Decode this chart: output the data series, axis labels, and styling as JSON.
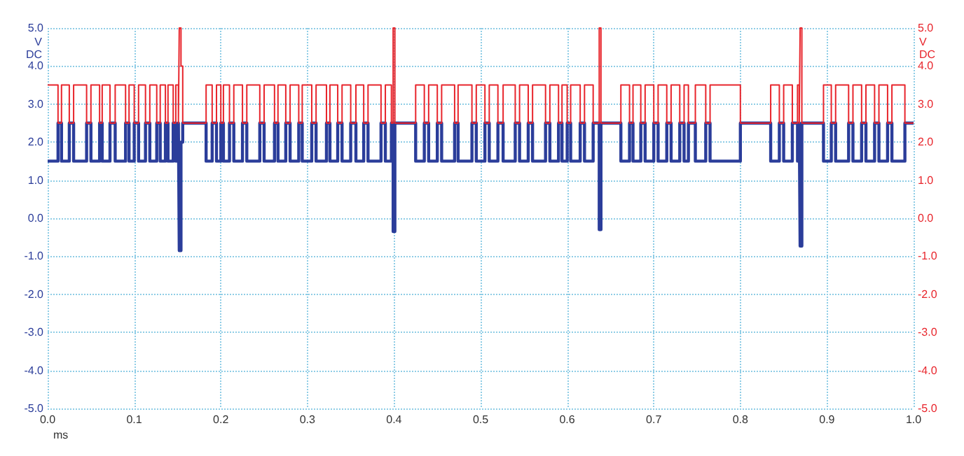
{
  "chart_data": {
    "type": "step",
    "xlabel": "ms",
    "ylabel": "V DC",
    "y2label": "V DC",
    "x": [
      0,
      0.012,
      0.016,
      0.025,
      0.03,
      0.045,
      0.05,
      0.06,
      0.063,
      0.072,
      0.078,
      0.09,
      0.094,
      0.1,
      0.105,
      0.113,
      0.118,
      0.126,
      0.13,
      0.136,
      0.139,
      0.145,
      0.148,
      0.151,
      0.152,
      0.154,
      0.156,
      0.183,
      0.19,
      0.195,
      0.2,
      0.203,
      0.21,
      0.215,
      0.225,
      0.23,
      0.245,
      0.25,
      0.262,
      0.266,
      0.275,
      0.28,
      0.29,
      0.294,
      0.305,
      0.31,
      0.322,
      0.326,
      0.335,
      0.34,
      0.35,
      0.356,
      0.365,
      0.37,
      0.385,
      0.39,
      0.397,
      0.399,
      0.401,
      0.425,
      0.435,
      0.44,
      0.45,
      0.455,
      0.47,
      0.474,
      0.49,
      0.495,
      0.505,
      0.51,
      0.52,
      0.526,
      0.54,
      0.545,
      0.555,
      0.56,
      0.575,
      0.58,
      0.59,
      0.594,
      0.6,
      0.604,
      0.615,
      0.62,
      0.63,
      0.637,
      0.639,
      0.662,
      0.672,
      0.676,
      0.685,
      0.69,
      0.7,
      0.705,
      0.715,
      0.72,
      0.73,
      0.735,
      0.74,
      0.748,
      0.76,
      0.765,
      0.8,
      0.835,
      0.845,
      0.85,
      0.86,
      0.866,
      0.868,
      0.869,
      0.871,
      0.896,
      0.905,
      0.91,
      0.925,
      0.93,
      0.94,
      0.945,
      0.955,
      0.96,
      0.97,
      0.975,
      0.99,
      1.0
    ],
    "series": [
      {
        "color": "#2b3d9a",
        "values": [
          1.5,
          2.5,
          1.5,
          2.5,
          1.5,
          2.5,
          1.5,
          2.5,
          1.5,
          2.5,
          1.5,
          2.5,
          1.5,
          2.5,
          1.5,
          2.5,
          1.5,
          2.5,
          1.5,
          2.5,
          1.5,
          2.5,
          1.5,
          2.5,
          -0.85,
          2.0,
          2.5,
          1.5,
          2.5,
          1.5,
          2.5,
          1.5,
          2.5,
          1.5,
          2.5,
          1.5,
          2.5,
          1.5,
          2.5,
          1.5,
          2.5,
          1.5,
          2.5,
          1.5,
          2.5,
          1.5,
          2.5,
          1.5,
          2.5,
          1.5,
          2.5,
          1.5,
          2.5,
          1.5,
          2.5,
          1.5,
          2.5,
          -0.35,
          2.5,
          1.5,
          2.5,
          1.5,
          2.5,
          1.5,
          2.5,
          1.5,
          2.5,
          1.5,
          2.5,
          1.5,
          2.5,
          1.5,
          2.5,
          1.5,
          2.5,
          1.5,
          2.5,
          1.5,
          2.5,
          1.5,
          2.5,
          1.5,
          2.5,
          1.5,
          2.5,
          -0.3,
          2.5,
          1.5,
          2.5,
          1.5,
          2.5,
          1.5,
          2.5,
          1.5,
          2.5,
          1.5,
          2.5,
          1.5,
          2.5,
          1.5,
          2.5,
          1.5,
          2.5,
          1.5,
          2.5,
          1.5,
          2.5,
          1.5,
          2.5,
          -0.73,
          2.5,
          1.5,
          2.5,
          1.5,
          2.5,
          1.5,
          2.5,
          1.5,
          2.5,
          1.5,
          2.5,
          1.5,
          2.5,
          2.5
        ]
      },
      {
        "color": "#e8252c",
        "axis": "y2",
        "values": [
          3.5,
          2.5,
          3.5,
          2.5,
          3.5,
          2.5,
          3.5,
          2.5,
          3.5,
          2.5,
          3.5,
          2.5,
          3.5,
          2.5,
          3.5,
          2.5,
          3.5,
          2.5,
          3.5,
          2.5,
          3.5,
          2.5,
          3.5,
          2.5,
          5.0,
          4.0,
          2.5,
          3.5,
          2.5,
          3.5,
          2.5,
          3.5,
          2.5,
          3.5,
          2.5,
          3.5,
          2.5,
          3.5,
          2.5,
          3.5,
          2.5,
          3.5,
          2.5,
          3.5,
          2.5,
          3.5,
          2.5,
          3.5,
          2.5,
          3.5,
          2.5,
          3.5,
          2.5,
          3.5,
          2.5,
          3.5,
          2.5,
          5.0,
          2.5,
          3.5,
          2.5,
          3.5,
          2.5,
          3.5,
          2.5,
          3.5,
          2.5,
          3.5,
          2.5,
          3.5,
          2.5,
          3.5,
          2.5,
          3.5,
          2.5,
          3.5,
          2.5,
          3.5,
          2.5,
          3.5,
          2.5,
          3.5,
          2.5,
          3.5,
          2.5,
          5.0,
          2.5,
          3.5,
          2.5,
          3.5,
          2.5,
          3.5,
          2.5,
          3.5,
          2.5,
          3.5,
          2.5,
          3.5,
          2.5,
          3.5,
          2.5,
          3.5,
          2.5,
          3.5,
          2.5,
          3.5,
          2.5,
          3.5,
          2.5,
          5.0,
          2.5,
          3.5,
          2.5,
          3.5,
          2.5,
          3.5,
          2.5,
          3.5,
          2.5,
          3.5,
          2.5,
          3.5,
          2.5,
          2.5
        ]
      }
    ],
    "xlim": [
      0,
      1
    ],
    "xticks": [
      {
        "value": 0,
        "label": "0.0"
      },
      0.1,
      0.2,
      0.3,
      0.4,
      0.5,
      0.6,
      0.7,
      0.8,
      0.9,
      {
        "value": 1,
        "label": "1.0"
      }
    ],
    "ylim": [
      -5,
      5
    ],
    "yticks": [
      {
        "value": -5,
        "label": "-5.0"
      },
      {
        "value": -4,
        "label": "-4.0"
      },
      {
        "value": -3,
        "label": "-3.0"
      },
      {
        "value": -2,
        "label": "-2.0"
      },
      {
        "value": -1,
        "label": "-1.0"
      },
      {
        "value": 0,
        "label": "0.0"
      },
      {
        "value": 1,
        "label": "1.0"
      },
      {
        "value": 2,
        "label": "2.0"
      },
      {
        "value": 3,
        "label": "3.0"
      },
      {
        "value": 4,
        "label": "4.0"
      },
      {
        "value": 5,
        "label": "5.0"
      }
    ],
    "y2lim": [
      -5,
      5
    ],
    "y2ticks": [
      {
        "value": -5,
        "label": "-5.0"
      },
      {
        "value": -4,
        "label": "-4.0"
      },
      {
        "value": -3,
        "label": "-3.0"
      },
      {
        "value": -2,
        "label": "-2.0"
      },
      {
        "value": -1,
        "label": "-1.0"
      },
      {
        "value": 0,
        "label": "0.0"
      },
      {
        "value": 1,
        "label": "1.0"
      },
      {
        "value": 2,
        "label": "2.0"
      },
      {
        "value": 3,
        "label": "3.0"
      },
      {
        "value": 4,
        "label": "4.0"
      },
      {
        "value": 5,
        "label": "5.0"
      }
    ],
    "grid": true,
    "line_style": "solid",
    "marker": "none"
  }
}
